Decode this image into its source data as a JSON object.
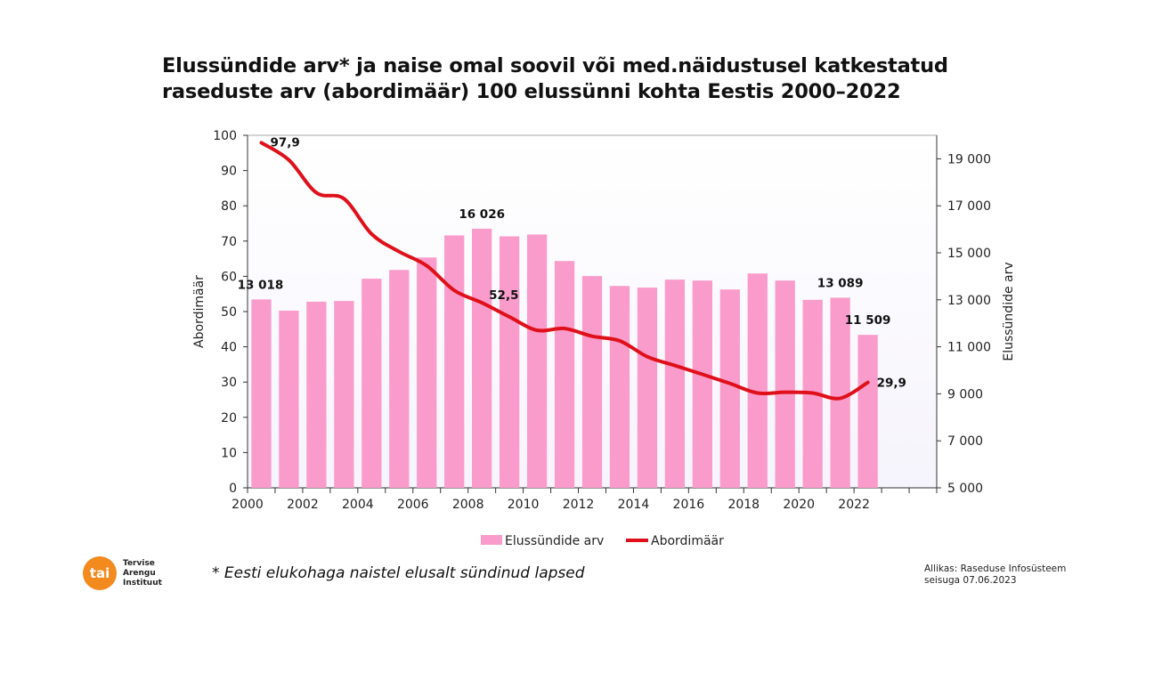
{
  "title_line1": "Elussündide arv* ja naise omal soovil või med.näidustusel katkestatud",
  "title_line2": "raseduste arv (abordimäär) 100 elussünni kohta Eestis 2000–2022",
  "footnote": "* Eesti elukohaga naistel elusalt sündinud lapsed",
  "source_line1": "Allikas: Raseduse Infosüsteem",
  "source_line2": "seisuga 07.06.2023",
  "logo": {
    "mark": "tai",
    "line1": "Tervise",
    "line2": "Arengu",
    "line3": "Instituut"
  },
  "chart_data": {
    "type": "bar+line",
    "title": "Elussündide arv* ja naise omal soovil või med.näidustusel katkestatud raseduste arv (abordimäär) 100 elussünni kohta Eestis 2000–2022",
    "categories": [
      2000,
      2001,
      2002,
      2003,
      2004,
      2005,
      2006,
      2007,
      2008,
      2009,
      2010,
      2011,
      2012,
      2013,
      2014,
      2015,
      2016,
      2017,
      2018,
      2019,
      2020,
      2021,
      2022,
      2023,
      2024
    ],
    "x_tick_labels": [
      "2000",
      "2002",
      "2004",
      "2006",
      "2008",
      "2010",
      "2012",
      "2014",
      "2016",
      "2018",
      "2020",
      "2022"
    ],
    "ylabel_left": "Abordimäär",
    "ylabel_right": "Elussündide arv",
    "ylim_left": [
      0,
      100
    ],
    "yticks_left": [
      "0",
      "10",
      "20",
      "30",
      "40",
      "50",
      "60",
      "70",
      "80",
      "90",
      "100"
    ],
    "ylim_right": [
      5000,
      20000
    ],
    "yticks_right": [
      "5 000",
      "7 000",
      "9 000",
      "11 000",
      "13 000",
      "15 000",
      "17 000",
      "19 000"
    ],
    "legend_position": "bottom",
    "colors": {
      "bars": "#fa9ccb",
      "line": "#e0101a"
    },
    "series": [
      {
        "name": "Elussündide arv",
        "type": "bar",
        "axis": "right",
        "values": [
          13018,
          12540,
          12920,
          12950,
          13900,
          14270,
          14800,
          15740,
          16026,
          15700,
          15780,
          14650,
          14010,
          13590,
          13520,
          13860,
          13820,
          13440,
          14120,
          13820,
          13000,
          13089,
          11509,
          null,
          null
        ]
      },
      {
        "name": "Abordimäär",
        "type": "line",
        "axis": "left",
        "values": [
          97.9,
          93,
          83.7,
          82,
          72,
          67,
          63,
          56,
          52.5,
          48.5,
          44.7,
          45.2,
          43,
          41.7,
          37.2,
          34.7,
          32.2,
          29.6,
          26.9,
          27.1,
          26.9,
          25.4,
          29.9,
          null,
          null
        ]
      }
    ],
    "data_labels": [
      {
        "series": "Elussündide arv",
        "x": 2000,
        "text": "13 018"
      },
      {
        "series": "Elussündide arv",
        "x": 2008,
        "text": "16 026"
      },
      {
        "series": "Elussündide arv",
        "x": 2021,
        "text": "13 089"
      },
      {
        "series": "Elussündide arv",
        "x": 2022,
        "text": "11 509"
      },
      {
        "series": "Abordimäär",
        "x": 2000,
        "text": "97,9"
      },
      {
        "series": "Abordimäär",
        "x": 2008,
        "text": "52,5"
      },
      {
        "series": "Abordimäär",
        "x": 2022,
        "text": "29,9"
      }
    ]
  }
}
